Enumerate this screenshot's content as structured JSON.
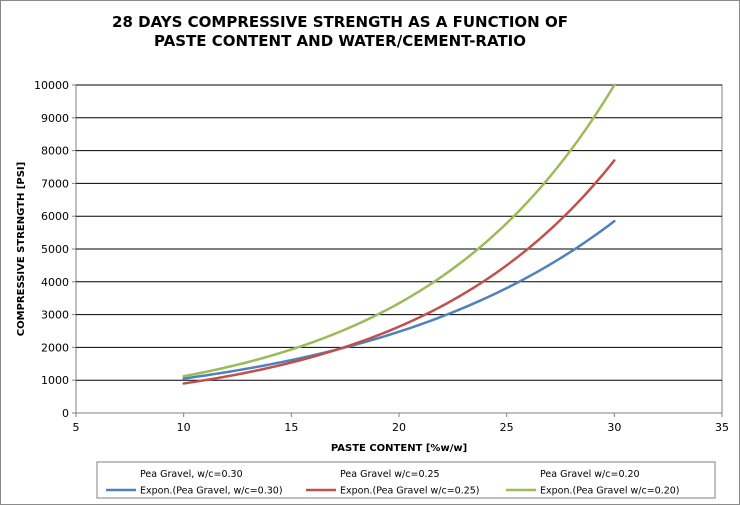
{
  "chart_data": {
    "type": "line",
    "title_lines": [
      "28 DAYS COMPRESSIVE STRENGTH AS A FUNCTION OF",
      "PASTE CONTENT AND WATER/CEMENT-RATIO"
    ],
    "xlabel": "PASTE CONTENT  [%w/w]",
    "ylabel": "COMPRESSIVE STRENGTH  [PSI]",
    "xlim": [
      5,
      35
    ],
    "ylim": [
      0,
      10000
    ],
    "x_ticks": [
      5,
      10,
      15,
      20,
      25,
      30,
      35
    ],
    "y_ticks": [
      0,
      1000,
      2000,
      3000,
      4000,
      5000,
      6000,
      7000,
      8000,
      9000,
      10000
    ],
    "grid": "horizontal",
    "legend_position": "bottom",
    "legend_point_entries": [
      "Pea Gravel, w/c=0.30",
      "Pea Gravel w/c=0.25",
      "Pea Gravel w/c=0.20"
    ],
    "series": [
      {
        "name": "Expon.(Pea Gravel, w/c=0.30)",
        "color": "#4f81bd",
        "x_range": [
          10,
          30
        ],
        "y_at_x_min": 1050,
        "y_at_x_max": 5850
      },
      {
        "name": "Expon.(Pea Gravel w/c=0.25)",
        "color": "#c0504d",
        "x_range": [
          10,
          30
        ],
        "y_at_x_min": 900,
        "y_at_x_max": 7700
      },
      {
        "name": "Expon.(Pea Gravel w/c=0.20)",
        "color": "#9bbb59",
        "x_range": [
          10,
          30
        ],
        "y_at_x_min": 1120,
        "y_at_x_max": 10000
      }
    ]
  }
}
